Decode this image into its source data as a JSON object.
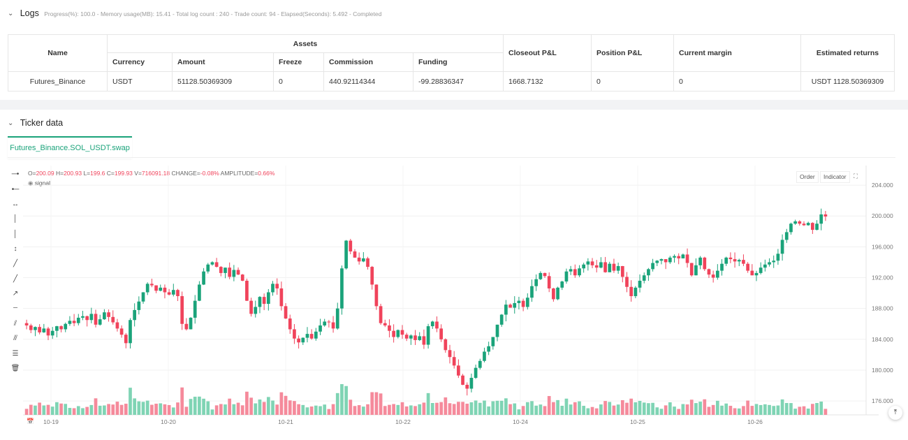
{
  "logs": {
    "title": "Logs",
    "meta": "Progress(%): 100.0 - Memory usage(MB): 15.41 - Total log count : 240 - Trade count:  94 - Elapsed(Seconds): 5.492 - Completed"
  },
  "assets_table": {
    "group_header": "Assets",
    "headers": {
      "name": "Name",
      "currency": "Currency",
      "amount": "Amount",
      "freeze": "Freeze",
      "commission": "Commission",
      "funding": "Funding",
      "closeout": "Closeout P&L",
      "position": "Position P&L",
      "margin": "Current margin",
      "returns": "Estimated returns"
    },
    "row": {
      "name": "Futures_Binance",
      "currency": "USDT",
      "amount": "51128.50369309",
      "freeze": "0",
      "commission": "440.92114344",
      "funding": "-99.28836347",
      "closeout": "1668.7132",
      "position": "0",
      "margin": "0",
      "returns": "USDT 1128.50369309"
    }
  },
  "ticker": {
    "title": "Ticker data",
    "tab": "Futures_Binance.SOL_USDT.swap",
    "ohlc": {
      "o_label": "O=",
      "o": "200.09",
      "h_label": "H=",
      "h": "200.93",
      "l_label": "L=",
      "l": "199.6",
      "c_label": "C=",
      "c": "199.93",
      "v_label": "V=",
      "v": "716091.18",
      "change_label": "CHANGE=",
      "change": "-0.08%",
      "amp_label": "AMPLITUDE=",
      "amp": "0.66%"
    },
    "signal": "signal",
    "order_button": "Order",
    "indicator_button": "Indicator"
  },
  "chart_data": {
    "type": "candlestick",
    "y_ticks": [
      "204.000",
      "200.000",
      "196.000",
      "192.000",
      "188.000",
      "184.000",
      "180.000",
      "176.000"
    ],
    "ylim": [
      174.2,
      206.0
    ],
    "x_ticks": [
      "10-19",
      "10-20",
      "10-21",
      "10-22",
      "10-24",
      "10-25",
      "10-26"
    ],
    "colors": {
      "up": "#1aa37a",
      "down": "#f0435b",
      "vol_up": "#7fd4b4",
      "vol_down": "#f58a9b"
    },
    "closes": [
      185.8,
      185.2,
      185.6,
      184.9,
      185.4,
      184.5,
      185.1,
      185.7,
      185.3,
      186.0,
      186.4,
      186.1,
      186.8,
      187.0,
      186.5,
      187.3,
      185.9,
      186.6,
      187.5,
      186.9,
      186.2,
      185.4,
      184.6,
      183.5,
      186.5,
      187.8,
      188.9,
      190.1,
      191.2,
      191.0,
      190.3,
      190.7,
      190.1,
      189.8,
      190.4,
      189.6,
      186.0,
      185.3,
      186.8,
      189.0,
      191.1,
      192.8,
      193.7,
      194.0,
      193.4,
      192.6,
      193.3,
      192.1,
      193.0,
      192.4,
      191.6,
      189.0,
      187.3,
      188.2,
      189.5,
      188.6,
      190.1,
      191.2,
      190.6,
      188.3,
      186.7,
      185.3,
      184.1,
      183.6,
      184.2,
      184.7,
      184.1,
      185.0,
      185.8,
      186.3,
      186.2,
      185.4,
      188.0,
      193.2,
      196.8,
      195.4,
      194.6,
      194.1,
      194.5,
      193.4,
      191.1,
      188.3,
      186.1,
      185.8,
      185.1,
      184.3,
      185.2,
      184.6,
      184.1,
      184.5,
      183.9,
      184.4,
      183.3,
      185.7,
      186.3,
      185.4,
      184.0,
      182.6,
      181.7,
      180.6,
      179.3,
      178.1,
      177.6,
      179.0,
      180.3,
      181.2,
      182.4,
      183.1,
      184.3,
      185.9,
      187.2,
      188.5,
      188.1,
      188.7,
      189.0,
      188.2,
      189.4,
      190.9,
      191.8,
      192.6,
      192.2,
      190.6,
      189.2,
      190.7,
      191.5,
      192.8,
      193.1,
      192.3,
      193.2,
      193.7,
      194.1,
      193.6,
      193.3,
      194.0,
      192.7,
      193.8,
      192.9,
      193.5,
      192.1,
      190.8,
      189.6,
      190.7,
      191.6,
      192.3,
      193.1,
      193.9,
      194.2,
      194.4,
      194.0,
      194.6,
      194.8,
      194.5,
      195.0,
      193.9,
      192.3,
      193.6,
      194.6,
      193.1,
      192.4,
      192.0,
      192.9,
      193.8,
      194.6,
      194.4,
      194.1,
      194.3,
      193.8,
      192.9,
      192.3,
      192.6,
      193.3,
      193.7,
      194.0,
      194.2,
      195.1,
      196.9,
      197.9,
      199.0,
      199.3,
      199.0,
      198.8,
      199.1,
      198.2,
      199.0,
      200.2,
      199.93
    ],
    "volume_bars": "one volume bar per candle, green when close >= previous close, red otherwise"
  }
}
